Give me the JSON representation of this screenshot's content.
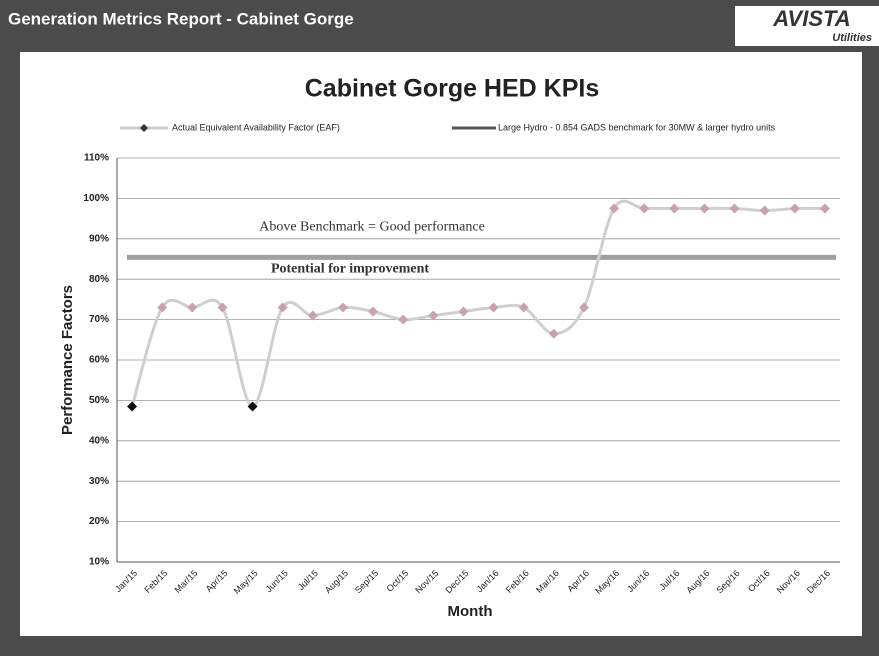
{
  "header": {
    "title": "Generation Metrics Report - Cabinet Gorge",
    "logo": "AVISTA",
    "logo_sub": "Utilities"
  },
  "chart_data": {
    "type": "line",
    "title": "Cabinet Gorge HED KPIs",
    "x_label": "Month",
    "y_label": "Performance Factors",
    "categories": [
      "Jan/15",
      "Feb/15",
      "Mar/15",
      "Apr/15",
      "May/15",
      "Jun/15",
      "Jul/15",
      "Aug/15",
      "Sep/15",
      "Oct/15",
      "Nov/15",
      "Dec/15",
      "Jan/16",
      "Feb/16",
      "Mar/16",
      "Apr/16",
      "May/16",
      "Jun/16",
      "Jul/16",
      "Aug/16",
      "Sep/16",
      "Oct/16",
      "Nov/16",
      "Dec/16"
    ],
    "series": [
      {
        "name": "Actual Equivalent Availability Factor (EAF)",
        "color": "#cfcfcf",
        "marker_color": "#c9a3ab",
        "point_colors": [
          "#111111",
          "#c9a3ab",
          "#c9a3ab",
          "#c9a3ab",
          "#111111",
          "#c9a3ab",
          "#c9a3ab",
          "#c9a3ab",
          "#c9a3ab",
          "#c9a3ab",
          "#c9a3ab",
          "#c9a3ab",
          "#c9a3ab",
          "#c9a3ab",
          "#c9a3ab",
          "#c9a3ab",
          "#c9a3ab",
          "#c9a3ab",
          "#c9a3ab",
          "#c9a3ab",
          "#c9a3ab",
          "#c9a3ab",
          "#c9a3ab",
          "#c9a3ab"
        ],
        "values": [
          48.5,
          73,
          73,
          73,
          48.5,
          73,
          71,
          73,
          72,
          70,
          71,
          72,
          73,
          73,
          66.5,
          73,
          97.5,
          97.5,
          97.5,
          97.5,
          97.5,
          97,
          97.5,
          97.5
        ]
      }
    ],
    "benchmark": {
      "name": "Large Hydro - 0.854 GADS benchmark for 30MW & larger hydro units",
      "value": 85.4,
      "color": "#a0a0a0"
    },
    "annotations": [
      "Above Benchmark = Good performance",
      "Potential for improvement"
    ],
    "ylim": [
      10,
      110
    ],
    "yticks": [
      {
        "value": 10,
        "label": "10%"
      },
      {
        "value": 20,
        "label": "20%"
      },
      {
        "value": 30,
        "label": "30%"
      },
      {
        "value": 40,
        "label": "40%"
      },
      {
        "value": 50,
        "label": "50%"
      },
      {
        "value": 60,
        "label": "60%"
      },
      {
        "value": 70,
        "label": "70%"
      },
      {
        "value": 80,
        "label": "80%"
      },
      {
        "value": 90,
        "label": "90%"
      },
      {
        "value": 100,
        "label": "100%"
      },
      {
        "value": 110,
        "label": "110%"
      }
    ],
    "grid": true
  }
}
